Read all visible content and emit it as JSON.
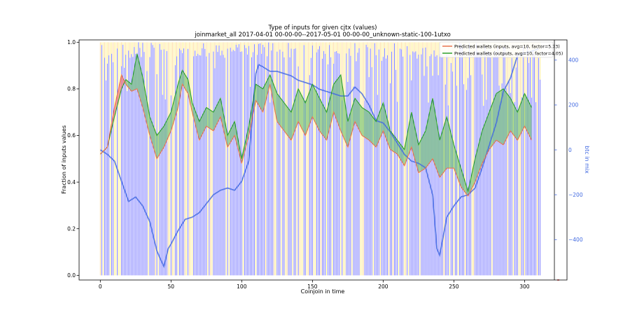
{
  "chart_data": {
    "type": "line",
    "title": "Type of inputs for given cjtx (values)",
    "subtitle": "joinmarket_all 2017-04-01 00-00-00--2017-05-01 00-00-00_unknown-static-100-1utxo",
    "xlabel": "Coinjoin in time",
    "ylabel": "Fraction of inputs values",
    "y2label": "btc in mix",
    "xlim": [
      -15,
      330
    ],
    "ylim": [
      -0.02,
      1.01
    ],
    "y2lim": [
      -580,
      490
    ],
    "xticks": [
      "0",
      "50",
      "100",
      "150",
      "200",
      "250",
      "300"
    ],
    "yticks": [
      "0.0",
      "0.2",
      "0.4",
      "0.6",
      "0.8",
      "1.0"
    ],
    "y2ticks": [
      "−400",
      "−200",
      "0",
      "200",
      "400"
    ],
    "legend_position": "top-right",
    "grid": false,
    "colors": {
      "inputs_line": "#e8744f",
      "inputs_fill": "#f08080",
      "outputs_line": "#2ca02c",
      "outputs_fill": "#6abf69",
      "btc_line": "#4169e1",
      "bars_blue": "#0000ff",
      "bars_orange": "#ffa500",
      "bars_yellow": "#ffd700"
    },
    "series": [
      {
        "name": "Predicted wallets (inputs, avg=10, factor=5.73)",
        "x": [
          0,
          5,
          10,
          15,
          18,
          22,
          26,
          30,
          35,
          40,
          45,
          50,
          55,
          58,
          62,
          65,
          70,
          75,
          80,
          85,
          90,
          95,
          100,
          105,
          110,
          115,
          120,
          125,
          130,
          135,
          140,
          145,
          150,
          155,
          160,
          165,
          170,
          175,
          180,
          185,
          190,
          195,
          200,
          205,
          210,
          215,
          220,
          225,
          230,
          235,
          240,
          245,
          250,
          255,
          260,
          265,
          270,
          275,
          280,
          285,
          290,
          295,
          300,
          305
        ],
        "values": [
          0.52,
          0.55,
          0.72,
          0.86,
          0.82,
          0.79,
          0.8,
          0.72,
          0.6,
          0.5,
          0.55,
          0.62,
          0.72,
          0.82,
          0.78,
          0.7,
          0.58,
          0.64,
          0.62,
          0.68,
          0.55,
          0.6,
          0.48,
          0.6,
          0.75,
          0.7,
          0.82,
          0.66,
          0.62,
          0.58,
          0.66,
          0.6,
          0.68,
          0.62,
          0.58,
          0.7,
          0.62,
          0.55,
          0.66,
          0.6,
          0.58,
          0.55,
          0.62,
          0.54,
          0.52,
          0.47,
          0.55,
          0.44,
          0.46,
          0.5,
          0.42,
          0.46,
          0.46,
          0.38,
          0.34,
          0.4,
          0.48,
          0.54,
          0.58,
          0.56,
          0.62,
          0.58,
          0.64,
          0.58
        ]
      },
      {
        "name": "Predicted wallets (outputs, avg=10, factor=4.05)",
        "x": [
          0,
          5,
          10,
          15,
          18,
          22,
          26,
          30,
          35,
          40,
          45,
          50,
          55,
          58,
          62,
          65,
          70,
          75,
          80,
          85,
          90,
          95,
          100,
          105,
          110,
          115,
          120,
          125,
          130,
          135,
          140,
          145,
          150,
          155,
          160,
          165,
          170,
          175,
          180,
          185,
          190,
          195,
          200,
          205,
          210,
          215,
          220,
          225,
          230,
          235,
          240,
          245,
          250,
          255,
          260,
          265,
          270,
          275,
          280,
          285,
          290,
          295,
          300,
          305
        ],
        "values": [
          0.52,
          0.55,
          0.68,
          0.8,
          0.84,
          0.82,
          0.95,
          0.85,
          0.68,
          0.6,
          0.64,
          0.7,
          0.82,
          0.88,
          0.84,
          0.74,
          0.66,
          0.72,
          0.7,
          0.76,
          0.6,
          0.66,
          0.5,
          0.64,
          0.82,
          0.8,
          0.86,
          0.78,
          0.74,
          0.7,
          0.8,
          0.74,
          0.82,
          0.76,
          0.7,
          0.82,
          0.86,
          0.66,
          0.76,
          0.72,
          0.7,
          0.66,
          0.74,
          0.62,
          0.58,
          0.54,
          0.7,
          0.56,
          0.62,
          0.76,
          0.58,
          0.68,
          0.56,
          0.46,
          0.36,
          0.5,
          0.62,
          0.7,
          0.78,
          0.8,
          0.76,
          0.7,
          0.78,
          0.72
        ]
      },
      {
        "name": "btc in mix",
        "axis": "right",
        "x": [
          0,
          5,
          10,
          15,
          20,
          25,
          30,
          35,
          40,
          42,
          45,
          48,
          50,
          55,
          60,
          65,
          70,
          75,
          80,
          85,
          90,
          95,
          100,
          105,
          110,
          112,
          115,
          120,
          125,
          130,
          135,
          140,
          145,
          150,
          155,
          160,
          165,
          170,
          175,
          180,
          185,
          190,
          195,
          200,
          205,
          210,
          215,
          220,
          225,
          230,
          235,
          238,
          240,
          245,
          250,
          255,
          260,
          265,
          270,
          275,
          280,
          285,
          290,
          295,
          300,
          305,
          310
        ],
        "values": [
          0,
          -20,
          -50,
          -140,
          -230,
          -210,
          -250,
          -320,
          -450,
          -480,
          -520,
          -440,
          -420,
          -360,
          -310,
          -300,
          -280,
          -240,
          -200,
          -180,
          -170,
          -180,
          -140,
          -50,
          340,
          380,
          370,
          350,
          350,
          340,
          330,
          310,
          300,
          290,
          270,
          260,
          250,
          240,
          240,
          280,
          250,
          200,
          130,
          120,
          80,
          30,
          -20,
          -50,
          -60,
          -80,
          -200,
          -440,
          -470,
          -300,
          -250,
          -210,
          -200,
          -170,
          -80,
          20,
          120,
          260,
          320,
          420,
          430,
          440,
          450
        ]
      }
    ]
  }
}
